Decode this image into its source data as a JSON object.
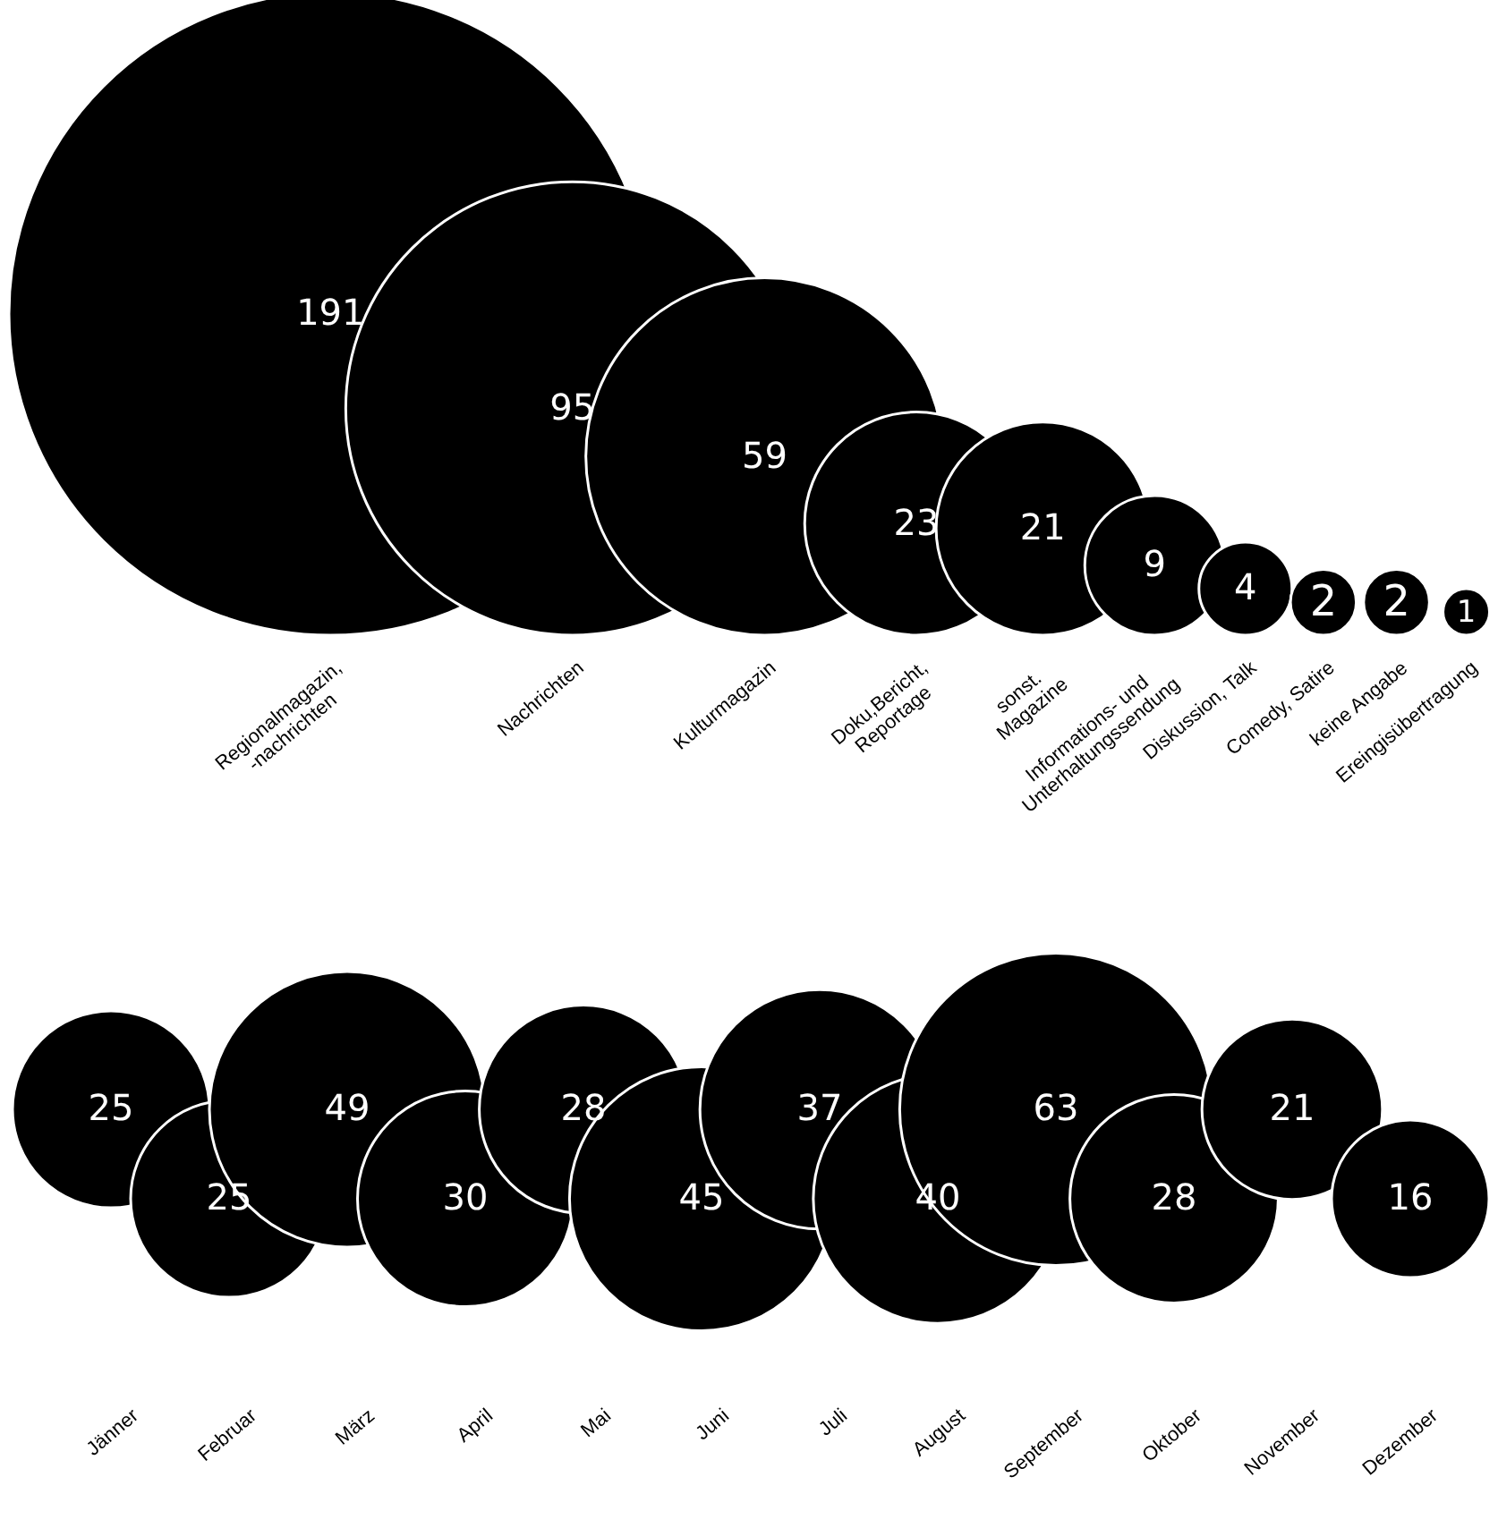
{
  "chart_data": [
    {
      "type": "other",
      "categories": [
        "Regionalmagazin,\n-nachrichten",
        "Nachrichten",
        "Kulturmagazin",
        "Doku,Bericht,\nReportage",
        "sonst.\nMagazine",
        "Informations- und\nUnterhaltungssendung",
        "Diskussion, Talk",
        "Comedy, Satire",
        "keine Angabe",
        "Ereingisübertragung"
      ],
      "values": [
        191,
        95,
        59,
        23,
        21,
        9,
        4,
        2,
        2,
        1
      ],
      "color": "#000000",
      "data_labels": true
    },
    {
      "type": "other",
      "categories": [
        "Jänner",
        "Februar",
        "März",
        "April",
        "Mai",
        "Juni",
        "Juli",
        "August",
        "September",
        "Oktober",
        "November",
        "Dezember"
      ],
      "values": [
        25,
        25,
        49,
        30,
        28,
        45,
        37,
        40,
        63,
        28,
        21,
        16
      ],
      "color": "#000000",
      "data_labels": true
    }
  ]
}
